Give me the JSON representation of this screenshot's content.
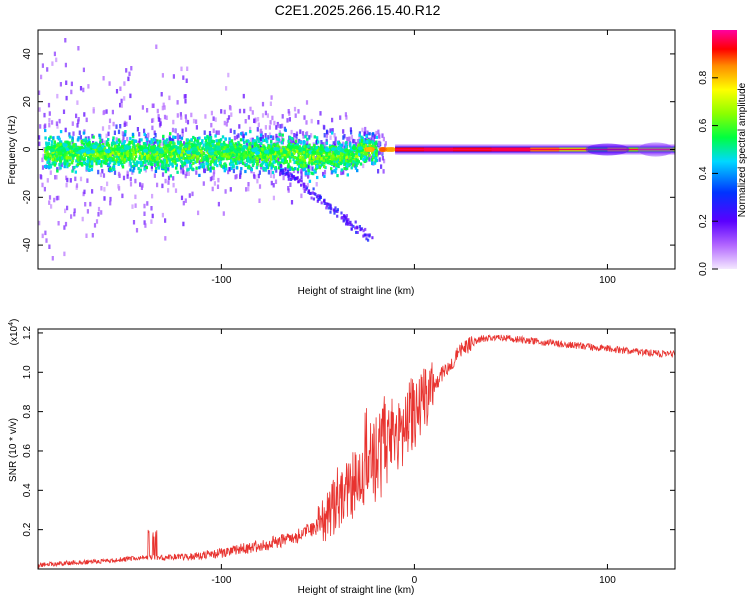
{
  "title": "C2E1.2025.266.15.40.R12",
  "chart_data": [
    {
      "type": "heatmap",
      "name": "spectrogram",
      "xlabel": "Height of straight line (km)",
      "ylabel": "Frequency (Hz)",
      "xlim": [
        -195,
        135
      ],
      "ylim": [
        -50,
        50
      ],
      "xticks": [
        -100,
        0,
        100
      ],
      "xtick_labels": [
        "-100",
        "",
        "100"
      ],
      "yticks": [
        -40,
        -20,
        0,
        20,
        40
      ],
      "ytick_labels": [
        "-40",
        "-20",
        "0",
        "20",
        "40"
      ],
      "colorbar": {
        "label": "Normalized spectral amplitude",
        "range": [
          0,
          1
        ],
        "ticks": [
          0.0,
          0.2,
          0.4,
          0.6,
          0.8
        ],
        "tick_labels": [
          "0.0",
          "0.2",
          "0.4",
          "0.6",
          "0.8"
        ],
        "colormap": "rainbow (purple-blue-cyan-green-yellow-red-magenta)"
      },
      "description_points": {
        "band_center_freq_hz": 0,
        "noisy_region_km": [
          -195,
          -25
        ],
        "transition_km": [
          -25,
          -10
        ],
        "clean_line_km": [
          -10,
          135
        ],
        "clean_line_amplitude": 0.95
      }
    },
    {
      "type": "line",
      "name": "snr",
      "xlabel": "Height of straight line (km)",
      "ylabel": "SNR (10 * v/v)",
      "y_scale_label": "(x10",
      "y_scale_exp": "4",
      "xlim": [
        -195,
        135
      ],
      "ylim": [
        0,
        1.22
      ],
      "xticks": [
        -100,
        0,
        100
      ],
      "xtick_labels": [
        "-100",
        "0",
        "100"
      ],
      "yticks": [
        0.2,
        0.4,
        0.6,
        0.8,
        1.0,
        1.2
      ],
      "ytick_labels": [
        "0.2",
        "0.4",
        "0.6",
        "0.8",
        "1.0",
        "1.2"
      ],
      "color": "#e8332f",
      "series": [
        {
          "name": "SNR",
          "x": [
            -195,
            -180,
            -160,
            -140,
            -120,
            -100,
            -90,
            -80,
            -70,
            -60,
            -50,
            -45,
            -40,
            -35,
            -30,
            -25,
            -20,
            -15,
            -10,
            -5,
            0,
            5,
            10,
            15,
            20,
            25,
            30,
            35,
            40,
            45,
            50,
            60,
            70,
            80,
            90,
            100,
            110,
            120,
            135
          ],
          "y": [
            0.02,
            0.03,
            0.04,
            0.06,
            0.06,
            0.08,
            0.1,
            0.12,
            0.14,
            0.17,
            0.22,
            0.28,
            0.34,
            0.4,
            0.45,
            0.52,
            0.56,
            0.62,
            0.68,
            0.74,
            0.8,
            0.86,
            0.93,
            1.0,
            1.06,
            1.12,
            1.15,
            1.17,
            1.18,
            1.18,
            1.17,
            1.16,
            1.15,
            1.14,
            1.13,
            1.12,
            1.11,
            1.1,
            1.09
          ]
        }
      ]
    }
  ]
}
